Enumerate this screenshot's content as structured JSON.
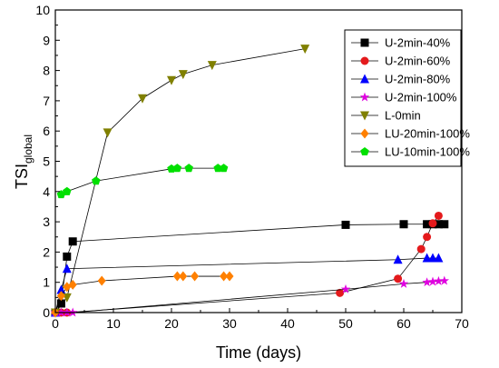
{
  "chart_data": {
    "type": "line",
    "title": "",
    "xlabel": "Time (days)",
    "ylabel": {
      "main": "TSI",
      "sub": "global"
    },
    "xlim": [
      0,
      70
    ],
    "ylim": [
      0,
      10
    ],
    "xticks": [
      0,
      10,
      20,
      30,
      40,
      50,
      60,
      70
    ],
    "yticks": [
      0,
      1,
      2,
      3,
      4,
      5,
      6,
      7,
      8,
      9,
      10
    ],
    "grid": false,
    "legend": "top-right",
    "series": [
      {
        "name": "U-2min-40%",
        "color": "#000000",
        "marker": "square",
        "points": [
          [
            0,
            0
          ],
          [
            1,
            0.3
          ],
          [
            2,
            1.85
          ],
          [
            3,
            2.35
          ],
          [
            50,
            2.9
          ],
          [
            60,
            2.92
          ],
          [
            64,
            2.92
          ],
          [
            65,
            2.92
          ],
          [
            66,
            2.92
          ],
          [
            67,
            2.92
          ]
        ]
      },
      {
        "name": "U-2min-60%",
        "color": "#e41a1c",
        "marker": "circle",
        "points": [
          [
            0,
            0
          ],
          [
            1,
            0
          ],
          [
            2,
            0
          ],
          [
            49,
            0.65
          ],
          [
            59,
            1.12
          ],
          [
            63,
            2.1
          ],
          [
            64,
            2.5
          ],
          [
            65,
            2.95
          ],
          [
            66,
            3.2
          ]
        ]
      },
      {
        "name": "U-2min-80%",
        "color": "#0000ff",
        "marker": "triangle-up",
        "points": [
          [
            0,
            0
          ],
          [
            1,
            0.75
          ],
          [
            2,
            1.45
          ],
          [
            59,
            1.75
          ],
          [
            64,
            1.8
          ],
          [
            65,
            1.8
          ],
          [
            66,
            1.8
          ]
        ]
      },
      {
        "name": "U-2min-100%",
        "color": "#e000e0",
        "marker": "star",
        "points": [
          [
            0,
            0
          ],
          [
            1,
            0
          ],
          [
            2,
            0
          ],
          [
            3,
            0
          ],
          [
            50,
            0.77
          ],
          [
            60,
            0.95
          ],
          [
            64,
            1.0
          ],
          [
            65,
            1.02
          ],
          [
            66,
            1.04
          ],
          [
            67,
            1.05
          ]
        ]
      },
      {
        "name": "L-0min",
        "color": "#808000",
        "marker": "triangle-down",
        "points": [
          [
            0,
            0
          ],
          [
            2,
            0.5
          ],
          [
            9,
            5.95
          ],
          [
            15,
            7.08
          ],
          [
            20,
            7.68
          ],
          [
            22,
            7.88
          ],
          [
            27,
            8.18
          ],
          [
            43,
            8.72
          ]
        ]
      },
      {
        "name": "LU-20min-100%",
        "color": "#ff8000",
        "marker": "diamond",
        "points": [
          [
            0,
            0
          ],
          [
            1,
            0.55
          ],
          [
            2,
            0.85
          ],
          [
            3,
            0.92
          ],
          [
            8,
            1.05
          ],
          [
            21,
            1.2
          ],
          [
            22,
            1.2
          ],
          [
            24,
            1.2
          ],
          [
            29,
            1.2
          ],
          [
            30,
            1.2
          ]
        ]
      },
      {
        "name": "LU-10min-100%",
        "color": "#00e000",
        "marker": "pentagon",
        "points": [
          [
            1,
            3.9
          ],
          [
            2,
            4.0
          ],
          [
            7,
            4.35
          ],
          [
            20,
            4.75
          ],
          [
            21,
            4.77
          ],
          [
            23,
            4.77
          ],
          [
            28,
            4.77
          ],
          [
            29,
            4.77
          ]
        ]
      }
    ]
  }
}
